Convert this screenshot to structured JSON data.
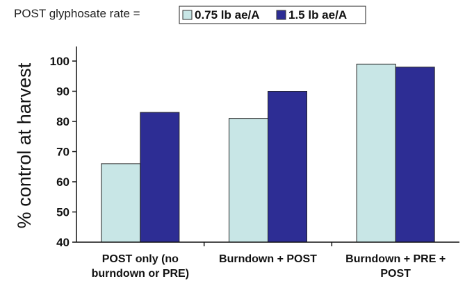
{
  "chart_data": {
    "type": "bar",
    "legend_prefix": "POST glyphosate rate =",
    "categories": [
      [
        "POST only (no",
        "burndown or PRE)"
      ],
      [
        "Burndown + POST"
      ],
      [
        "Burndown + PRE +",
        "POST"
      ]
    ],
    "series": [
      {
        "name": "0.75 lb ae/A",
        "color": "#c8e6e6",
        "values": [
          66,
          81,
          99
        ]
      },
      {
        "name": "1.5 lb ae/A",
        "color": "#2d2d94",
        "values": [
          83,
          90,
          98
        ]
      }
    ],
    "ylabel": "% control at harvest",
    "ylim": [
      40,
      100
    ],
    "yticks": [
      40,
      50,
      60,
      70,
      80,
      90,
      100
    ],
    "grid": false,
    "legend_position": "top"
  }
}
